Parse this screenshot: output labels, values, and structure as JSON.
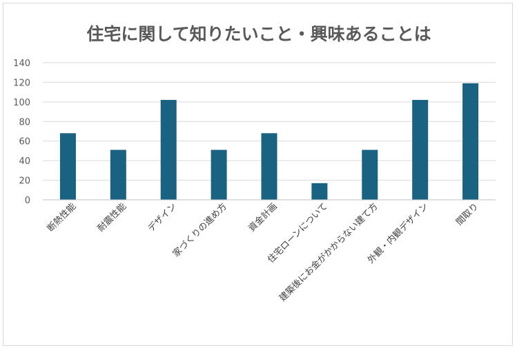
{
  "chart_data": {
    "type": "bar",
    "title": "住宅に関して知りたいこと・興味あることは",
    "xlabel": "",
    "ylabel": "",
    "categories": [
      "断熱性能",
      "耐震性能",
      "デザイン",
      "家づくりの進め方",
      "資金計画",
      "住宅ローンについて",
      "建築後にお金がかからない建て方",
      "外観・内観デザイン",
      "間取り"
    ],
    "values": [
      68,
      51,
      102,
      51,
      68,
      17,
      51,
      102,
      119
    ],
    "ylim": [
      0,
      140
    ],
    "yticks": [
      0,
      20,
      40,
      60,
      80,
      100,
      120,
      140
    ],
    "grid": true,
    "legend": "none",
    "bar_color": "#1a6282"
  }
}
